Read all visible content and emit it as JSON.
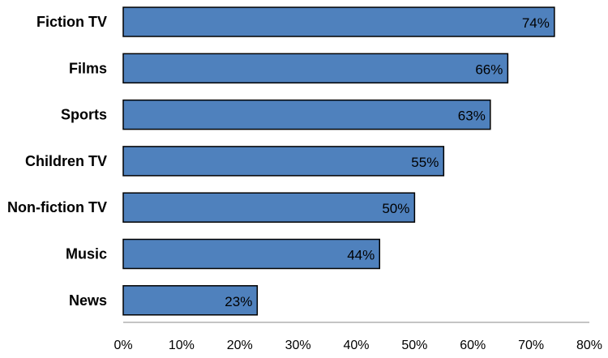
{
  "chart_data": {
    "type": "bar",
    "orientation": "horizontal",
    "categories": [
      "Fiction TV",
      "Films",
      "Sports",
      "Children TV",
      "Non-fiction TV",
      "Music",
      "News"
    ],
    "values": [
      74,
      66,
      63,
      55,
      50,
      44,
      23
    ],
    "data_labels": [
      "74%",
      "66%",
      "63%",
      "55%",
      "50%",
      "44%",
      "23%"
    ],
    "xlim": [
      0,
      80
    ],
    "x_ticks": [
      0,
      10,
      20,
      30,
      40,
      50,
      60,
      70,
      80
    ],
    "x_tick_labels": [
      "0%",
      "10%",
      "20%",
      "30%",
      "40%",
      "50%",
      "60%",
      "70%",
      "80%"
    ],
    "title": "",
    "xlabel": "",
    "ylabel": "",
    "grid": false,
    "legend": false,
    "colors": {
      "bar_fill": "#4f81bd",
      "bar_stroke": "#000000",
      "axis": "#888888"
    }
  }
}
